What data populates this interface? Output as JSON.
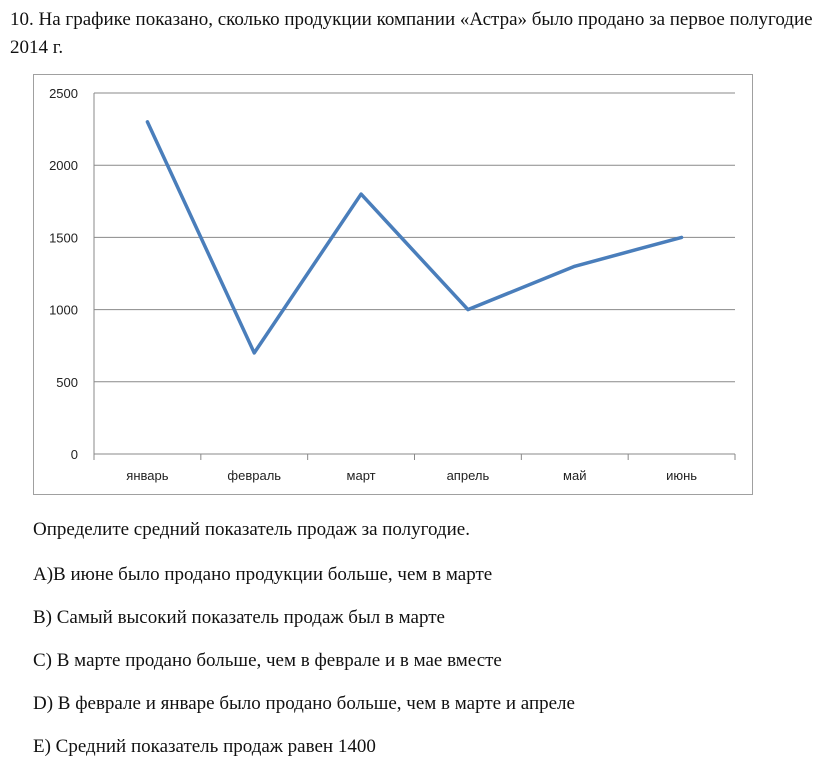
{
  "question": {
    "text": "10. На графике показано, сколько продукции компании «Астра» было продано за первое полугодие 2014 г."
  },
  "chart_data": {
    "type": "line",
    "title": "",
    "xlabel": "",
    "ylabel": "",
    "categories": [
      "январь",
      "февраль",
      "март",
      "апрель",
      "май",
      "июнь"
    ],
    "series": [
      {
        "values": [
          2300,
          700,
          1800,
          1000,
          1300,
          1500
        ]
      }
    ],
    "ylim": [
      0,
      2500
    ],
    "yticks": [
      0,
      500,
      1000,
      1500,
      2000,
      2500
    ],
    "grid": true,
    "legend": "none",
    "line_color": "#4a7ebb",
    "grid_color": "#898989"
  },
  "instruction": "Определите средний показатель продаж за полугодие.",
  "options": [
    "A)В июне было продано продукции больше, чем в марте",
    "B) Самый высокий показатель продаж был в марте",
    "C) В марте продано больше, чем в феврале и в мае вместе",
    "D) В феврале и январе было продано больше, чем в марте и апреле",
    "E) Средний показатель продаж равен 1400"
  ]
}
